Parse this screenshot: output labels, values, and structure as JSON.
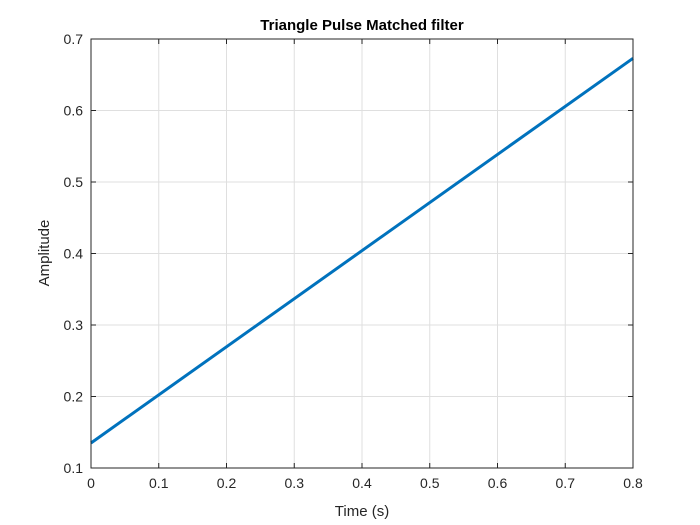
{
  "chart_data": {
    "type": "line",
    "title": "Triangle Pulse Matched filter",
    "xlabel": "Time (s)",
    "ylabel": "Amplitude",
    "xlim": [
      0,
      0.8
    ],
    "ylim": [
      0.1,
      0.7
    ],
    "xticks": [
      0,
      0.1,
      0.2,
      0.3,
      0.4,
      0.5,
      0.6,
      0.7,
      0.8
    ],
    "yticks": [
      0.1,
      0.2,
      0.3,
      0.4,
      0.5,
      0.6,
      0.7
    ],
    "xtick_labels": [
      "0",
      "0.1",
      "0.2",
      "0.3",
      "0.4",
      "0.5",
      "0.6",
      "0.7",
      "0.8"
    ],
    "ytick_labels": [
      "0.1",
      "0.2",
      "0.3",
      "0.4",
      "0.5",
      "0.6",
      "0.7"
    ],
    "grid": true,
    "series": [
      {
        "color": "#0072bd",
        "x": [
          0,
          0.8
        ],
        "y": [
          0.135,
          0.673
        ]
      }
    ]
  }
}
